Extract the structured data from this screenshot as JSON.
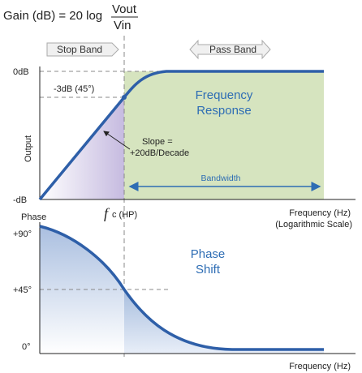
{
  "formula": {
    "lhs": "Gain (dB) = 20 log",
    "numerator": "Vout",
    "denominator": "Vin"
  },
  "bands": {
    "stop": "Stop Band",
    "pass": "Pass Band"
  },
  "gain_plot": {
    "ytick_top": "0dB",
    "ytick_bottom": "-dB",
    "y_axis_label": "Output",
    "corner_label": "-3dB (45°)",
    "response_title_line1": "Frequency",
    "response_title_line2": "Response",
    "slope_line1": "Slope =",
    "slope_line2": "+20dB/Decade",
    "bandwidth": "Bandwidth",
    "xlabel_line1": "Frequency (Hz)",
    "xlabel_line2": "(Logarithmic Scale)"
  },
  "cutoff": {
    "symbol": "f",
    "subscript": "c (HP)"
  },
  "phase_plot": {
    "y_axis_label": "Phase",
    "ytick_90": "+90°",
    "ytick_45": "+45°",
    "ytick_0": "0°",
    "title_line1": "Phase",
    "title_line2": "Shift",
    "xlabel": "Frequency (Hz)"
  },
  "colors": {
    "curve": "#2e5fa8",
    "pass_fill": "#d6e4bf",
    "stop_fill_dark": "#c9bfe0",
    "phase_fill_dark": "#b3c6e3",
    "guide": "#888888",
    "text_blue": "#2e6db4"
  }
}
